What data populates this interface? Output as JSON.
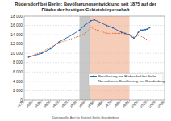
{
  "chart_data": {
    "type": "line",
    "title": "Rüdersdorf bei Berlin: Bevölkerungsentwicklung seit 1875 auf der",
    "subtitle": "Fläche der heutigen Gebietskörperschaft",
    "source": "Datenquelle: Amt für Statistik Berlin-Brandenburg",
    "xlim": [
      1870,
      2030
    ],
    "xticks": [
      1870,
      1880,
      1890,
      1900,
      1910,
      1920,
      1930,
      1940,
      1950,
      1960,
      1970,
      1980,
      1990,
      2000,
      2010,
      2020,
      2030
    ],
    "ylim": [
      0,
      18000
    ],
    "yticks": [
      0,
      {
        "value": 2000,
        "label": "2 000"
      },
      {
        "value": 4000,
        "label": "4 000"
      },
      {
        "value": 6000,
        "label": "6 000"
      },
      {
        "value": 8000,
        "label": "8 000"
      },
      {
        "value": 10000,
        "label": "10 000"
      },
      {
        "value": 12000,
        "label": "12 000"
      },
      {
        "value": 14000,
        "label": "14 000"
      },
      {
        "value": 16000,
        "label": "16 000"
      },
      {
        "value": 18000,
        "label": "18 000"
      }
    ],
    "grid": true,
    "legend": "lower right",
    "bands": [
      {
        "start": 1933,
        "end": 1945,
        "color": "#c8c8c8"
      },
      {
        "start": 1945,
        "end": 1990,
        "color": "#f6cdb8"
      }
    ],
    "series": [
      {
        "name": "Bevölkerung von Rüdersdorf bei Berlin",
        "color": "#1f5fa8",
        "marker": "circle",
        "line_style": "solid",
        "x": [
          1875,
          1890,
          1900,
          1910,
          1925,
          1933,
          1939,
          1946,
          1950,
          1964,
          1971,
          1981,
          1985,
          1989,
          1990,
          1992,
          1995,
          1998,
          2000,
          2003,
          2005,
          2008,
          2010,
          2013
        ],
        "values": [
          9200,
          10000,
          11000,
          12500,
          14000,
          15000,
          16000,
          17000,
          17200,
          16000,
          15500,
          14500,
          14300,
          14000,
          14000,
          13600,
          13300,
          13800,
          14500,
          15000,
          15000,
          15100,
          15200,
          15500
        ]
      },
      {
        "name": "Normalisierte Bevölkerung von Brandenburg",
        "color": "#d9541e",
        "marker": "none",
        "line_style": "dotted",
        "x": [
          1875,
          1890,
          1900,
          1910,
          1925,
          1933,
          1939,
          1946,
          1950,
          1964,
          1971,
          1981,
          1985,
          1989,
          1990,
          1995,
          2000,
          2005,
          2010,
          2013
        ],
        "values": [
          9200,
          10300,
          11300,
          12300,
          13200,
          13700,
          14200,
          15600,
          15200,
          14300,
          14300,
          14300,
          14200,
          14000,
          13900,
          13500,
          13800,
          13500,
          13000,
          12800
        ]
      }
    ]
  }
}
